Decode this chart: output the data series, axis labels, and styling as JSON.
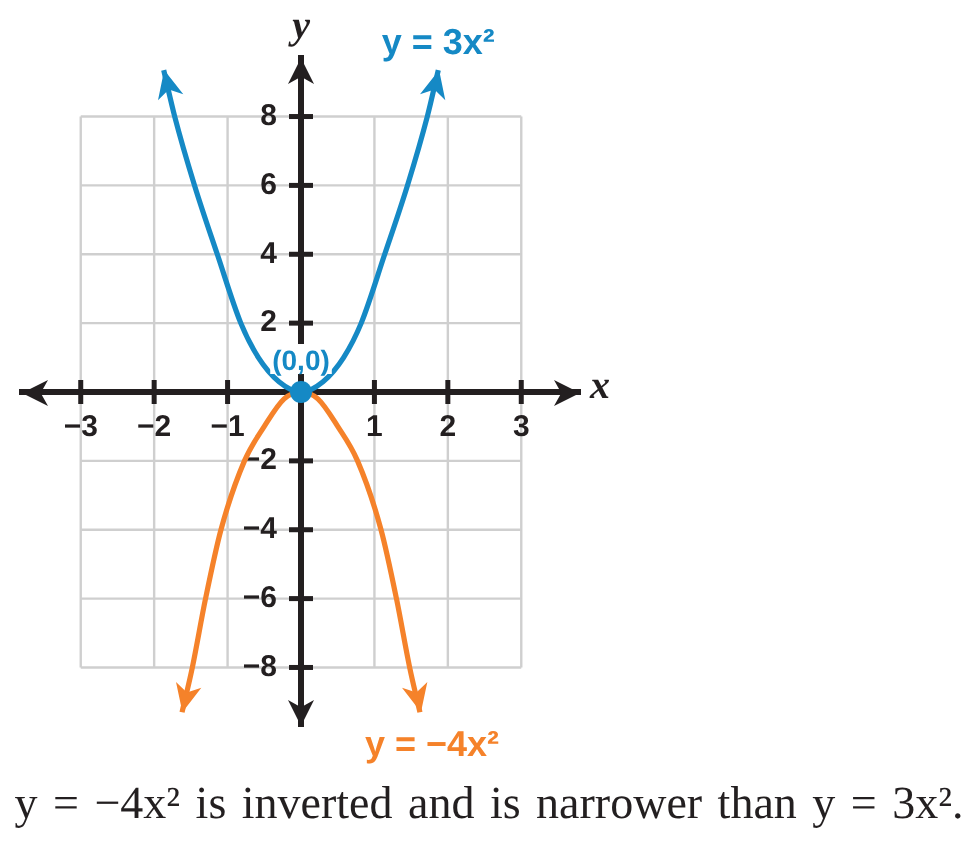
{
  "chart_data": {
    "type": "line",
    "xlabel": "x",
    "ylabel": "y",
    "series": [
      {
        "name": "y = 3x²",
        "color": "#1589c5",
        "x": [
          -1.87,
          -1.72,
          -1.45,
          -1.14,
          -0.82,
          -0.58,
          -0.3,
          0,
          0.3,
          0.58,
          0.82,
          1.14,
          1.45,
          1.72,
          1.87
        ],
        "values": [
          9.35,
          8,
          6,
          4,
          2,
          1,
          0.3,
          0,
          0.3,
          1,
          2,
          4,
          6,
          8,
          9.35
        ]
      },
      {
        "name": "y = −4x²",
        "color": "#f5822a",
        "x": [
          -1.62,
          -1.48,
          -1.3,
          -1.09,
          -0.77,
          -0.5,
          -0.23,
          0,
          0.23,
          0.5,
          0.77,
          1.09,
          1.3,
          1.48,
          1.62
        ],
        "values": [
          -9.3,
          -8,
          -6,
          -4,
          -2,
          -1,
          -0.2,
          0,
          -0.2,
          -1,
          -2,
          -4,
          -6,
          -8,
          -9.3
        ]
      },
      {
        "type": "scatter",
        "color": "#1589c5",
        "marker": "circle",
        "x": [
          0
        ],
        "values": [
          0
        ]
      }
    ],
    "xlim": [
      -3.8,
      3.8
    ],
    "ylim": [
      -9.7,
      9.7
    ],
    "xticks": [
      {
        "value": -3,
        "label": "−3"
      },
      {
        "value": -2,
        "label": "−2"
      },
      {
        "value": -1,
        "label": "−1"
      },
      {
        "value": 0,
        "label": null
      },
      1,
      2,
      3
    ],
    "yticks": [
      {
        "value": -8,
        "label": "−8"
      },
      {
        "value": -6,
        "label": "−6"
      },
      {
        "value": -4,
        "label": "−4"
      },
      {
        "value": -2,
        "label": "−2"
      },
      {
        "value": 0,
        "label": null
      },
      2,
      4,
      6,
      8
    ],
    "grid": true,
    "marker": "none",
    "annotations": [
      {
        "text": "(0,0)",
        "x": 0,
        "y": 0
      },
      "y = −4x² is inverted and is narrower than y = 3x²."
    ]
  }
}
